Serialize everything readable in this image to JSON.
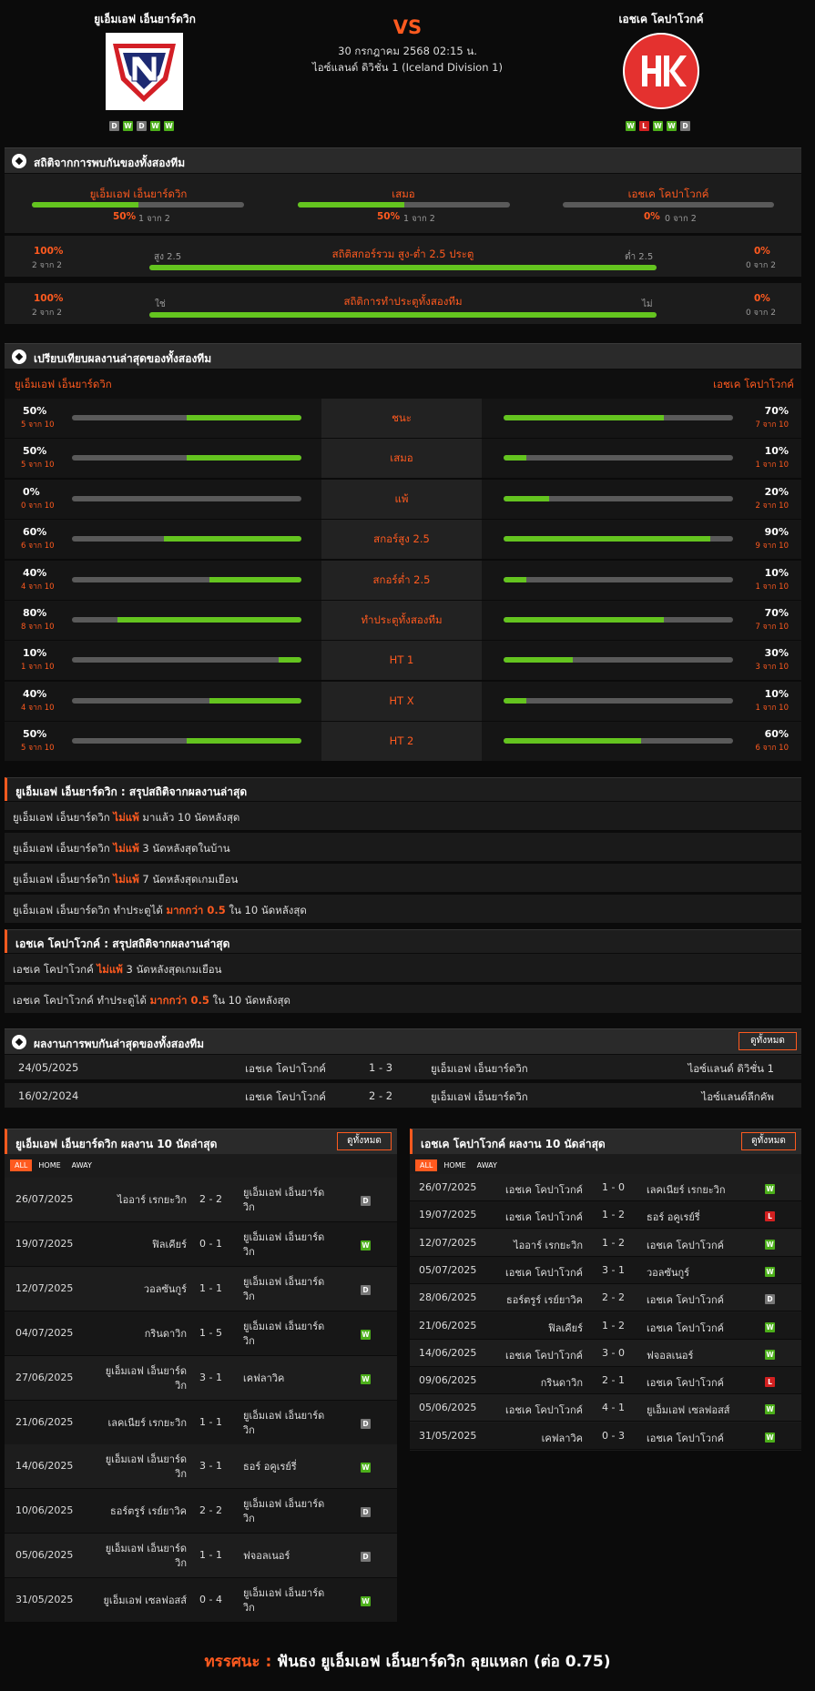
{
  "header": {
    "home_name": "ยูเอ็มเอฟ เอ็นยาร์ดวิก",
    "away_name": "เอชเค โคปาโวกค์",
    "vs": "VS",
    "date": "30 กรกฎาคม 2568 02:15 น.",
    "league": "ไอซ์แลนด์ ดิวิชั่น 1 (Iceland Division 1)",
    "home_form": [
      "D",
      "W",
      "D",
      "W",
      "W"
    ],
    "away_form": [
      "W",
      "L",
      "W",
      "W",
      "D"
    ]
  },
  "h2h_stats": {
    "title": "สถิติจากการพบกันของทั้งสองทีม",
    "cols": [
      {
        "name": "ยูเอ็มเอฟ เอ็นยาร์ดวิก",
        "pct": "50%",
        "sub": "1 จาก 2",
        "fill": 0.5
      },
      {
        "name": "เสมอ",
        "pct": "50%",
        "sub": "1 จาก 2",
        "fill": 0.5
      },
      {
        "name": "เอชเค โคปาโวกค์",
        "pct": "0%",
        "sub": "0 จาก 2",
        "fill": 0
      }
    ],
    "ou": {
      "left_pct": "100%",
      "left_sub": "2 จาก 2",
      "label_l": "สูง 2.5",
      "title": "สถิติสกอร์รวม สูง-ต่ำ 2.5 ประตู",
      "label_r": "ต่ำ 2.5",
      "right_pct": "0%",
      "right_sub": "0 จาก 2",
      "fill": 1
    },
    "btts": {
      "left_pct": "100%",
      "left_sub": "2 จาก 2",
      "label_l": "ใช่",
      "title": "สถิติการทำประตูทั้งสองทีม",
      "label_r": "ไม่",
      "right_pct": "0%",
      "right_sub": "0 จาก 2",
      "fill": 1
    }
  },
  "compare": {
    "title": "เปรียบเทียบผลงานล่าสุดของทั้งสองทีม",
    "home": "ยูเอ็มเอฟ เอ็นยาร์ดวิก",
    "away": "เอชเค โคปาโวกค์",
    "rows": [
      {
        "label": "ชนะ",
        "lp": "50%",
        "ls": "5 จาก 10",
        "lf": 0.5,
        "rp": "70%",
        "rs": "7 จาก 10",
        "rf": 0.7
      },
      {
        "label": "เสมอ",
        "lp": "50%",
        "ls": "5 จาก 10",
        "lf": 0.5,
        "rp": "10%",
        "rs": "1 จาก 10",
        "rf": 0.1
      },
      {
        "label": "แพ้",
        "lp": "0%",
        "ls": "0 จาก 10",
        "lf": 0,
        "rp": "20%",
        "rs": "2 จาก 10",
        "rf": 0.2
      },
      {
        "label": "สกอร์สูง 2.5",
        "lp": "60%",
        "ls": "6 จาก 10",
        "lf": 0.6,
        "rp": "90%",
        "rs": "9 จาก 10",
        "rf": 0.9
      },
      {
        "label": "สกอร์ต่ำ 2.5",
        "lp": "40%",
        "ls": "4 จาก 10",
        "lf": 0.4,
        "rp": "10%",
        "rs": "1 จาก 10",
        "rf": 0.1
      },
      {
        "label": "ทำประตูทั้งสองทีม",
        "lp": "80%",
        "ls": "8 จาก 10",
        "lf": 0.8,
        "rp": "70%",
        "rs": "7 จาก 10",
        "rf": 0.7
      },
      {
        "label": "HT 1",
        "lp": "10%",
        "ls": "1 จาก 10",
        "lf": 0.1,
        "rp": "30%",
        "rs": "3 จาก 10",
        "rf": 0.3
      },
      {
        "label": "HT X",
        "lp": "40%",
        "ls": "4 จาก 10",
        "lf": 0.4,
        "rp": "10%",
        "rs": "1 จาก 10",
        "rf": 0.1
      },
      {
        "label": "HT 2",
        "lp": "50%",
        "ls": "5 จาก 10",
        "lf": 0.5,
        "rp": "60%",
        "rs": "6 จาก 10",
        "rf": 0.6
      }
    ]
  },
  "home_summary": {
    "title": "ยูเอ็มเอฟ เอ็นยาร์ดวิก : สรุปสถิติจากผลงานล่าสุด",
    "lines": [
      {
        "a": "ยูเอ็มเอฟ เอ็นยาร์ดวิก ",
        "h": "ไม่แพ้",
        "b": " มาแล้ว 10 นัดหลังสุด"
      },
      {
        "a": "ยูเอ็มเอฟ เอ็นยาร์ดวิก ",
        "h": "ไม่แพ้",
        "b": " 3  นัดหลังสุดในบ้าน"
      },
      {
        "a": "ยูเอ็มเอฟ เอ็นยาร์ดวิก ",
        "h": "ไม่แพ้",
        "b": " 7  นัดหลังสุดเกมเยือน"
      },
      {
        "a": "ยูเอ็มเอฟ เอ็นยาร์ดวิก  ทำประตูได้ ",
        "h": "มากกว่า  0.5",
        "b": "  ใน 10 นัดหลังสุด"
      }
    ]
  },
  "away_summary": {
    "title": "เอชเค โคปาโวกค์ : สรุปสถิติจากผลงานล่าสุด",
    "lines": [
      {
        "a": "เอชเค โคปาโวกค์ ",
        "h": "ไม่แพ้",
        "b": " 3  นัดหลังสุดเกมเยือน"
      },
      {
        "a": "เอชเค โคปาโวกค์  ทำประตูได้ ",
        "h": "มากกว่า  0.5",
        "b": "  ใน 10 นัดหลังสุด"
      }
    ]
  },
  "recent_h2h": {
    "title": "ผลงานการพบกันล่าสุดของทั้งสองทีม",
    "view_all": "ดูทั้งหมด",
    "rows": [
      {
        "date": "24/05/2025",
        "home": "เอชเค โคปาโวกค์",
        "score": "1 - 3",
        "away": "ยูเอ็มเอฟ เอ็นยาร์ดวิก",
        "league": "ไอซ์แลนด์ ดิวิชั่น 1"
      },
      {
        "date": "16/02/2024",
        "home": "เอชเค โคปาโวกค์",
        "score": "2 - 2",
        "away": "ยูเอ็มเอฟ เอ็นยาร์ดวิก",
        "league": "ไอซ์แลนด์ลีกคัพ"
      }
    ]
  },
  "home_last10": {
    "title": "ยูเอ็มเอฟ เอ็นยาร์ดวิก ผลงาน 10 นัดล่าสุด",
    "view_all": "ดูทั้งหมด",
    "tabs": [
      "ALL",
      "HOME",
      "AWAY"
    ],
    "rows": [
      {
        "date": "26/07/2025",
        "home": "ไออาร์ เรกยะวิก",
        "score": "2 - 2",
        "away": "ยูเอ็มเอฟ เอ็นยาร์ด\nวิก",
        "res": "D"
      },
      {
        "date": "19/07/2025",
        "home": "ฟิลเคียร์",
        "score": "0 - 1",
        "away": "ยูเอ็มเอฟ เอ็นยาร์ด\nวิก",
        "res": "W"
      },
      {
        "date": "12/07/2025",
        "home": "วอลซันกูร์",
        "score": "1 - 1",
        "away": "ยูเอ็มเอฟ เอ็นยาร์ด\nวิก",
        "res": "D"
      },
      {
        "date": "04/07/2025",
        "home": "กรินดาวิก",
        "score": "1 - 5",
        "away": "ยูเอ็มเอฟ เอ็นยาร์ด\nวิก",
        "res": "W"
      },
      {
        "date": "27/06/2025",
        "home": "ยูเอ็มเอฟ เอ็นยาร์ด\nวิก",
        "score": "3 - 1",
        "away": "เคฟลาวิค",
        "res": "W"
      },
      {
        "date": "21/06/2025",
        "home": "เลคเนียร์ เรกยะวิก",
        "score": "1 - 1",
        "away": "ยูเอ็มเอฟ เอ็นยาร์ด\nวิก",
        "res": "D"
      },
      {
        "date": "14/06/2025",
        "home": "ยูเอ็มเอฟ เอ็นยาร์ด\nวิก",
        "score": "3 - 1",
        "away": "ธอร์ อคูเรย์รี่",
        "res": "W"
      },
      {
        "date": "10/06/2025",
        "home": "ธอร์ตรูร์ เรย์ยาวิค",
        "score": "2 - 2",
        "away": "ยูเอ็มเอฟ เอ็นยาร์ด\nวิก",
        "res": "D"
      },
      {
        "date": "05/06/2025",
        "home": "ยูเอ็มเอฟ เอ็นยาร์ด\nวิก",
        "score": "1 - 1",
        "away": "ฟจอลเนอร์",
        "res": "D"
      },
      {
        "date": "31/05/2025",
        "home": "ยูเอ็มเอฟ เซลฟอสส์",
        "score": "0 - 4",
        "away": "ยูเอ็มเอฟ เอ็นยาร์ด\nวิก",
        "res": "W"
      }
    ]
  },
  "away_last10": {
    "title": "เอชเค โคปาโวกค์ ผลงาน 10 นัดล่าสุด",
    "view_all": "ดูทั้งหมด",
    "tabs": [
      "ALL",
      "HOME",
      "AWAY"
    ],
    "rows": [
      {
        "date": "26/07/2025",
        "home": "เอชเค โคปาโวกค์",
        "score": "1 - 0",
        "away": "เลคเนียร์ เรกยะวิก",
        "res": "W"
      },
      {
        "date": "19/07/2025",
        "home": "เอชเค โคปาโวกค์",
        "score": "1 - 2",
        "away": "ธอร์ อคูเรย์รี่",
        "res": "L"
      },
      {
        "date": "12/07/2025",
        "home": "ไออาร์ เรกยะวิก",
        "score": "1 - 2",
        "away": "เอชเค โคปาโวกค์",
        "res": "W"
      },
      {
        "date": "05/07/2025",
        "home": "เอชเค โคปาโวกค์",
        "score": "3 - 1",
        "away": "วอลซันกูร์",
        "res": "W"
      },
      {
        "date": "28/06/2025",
        "home": "ธอร์ตรูร์ เรย์ยาวิค",
        "score": "2 - 2",
        "away": "เอชเค โคปาโวกค์",
        "res": "D"
      },
      {
        "date": "21/06/2025",
        "home": "ฟิลเคียร์",
        "score": "1 - 2",
        "away": "เอชเค โคปาโวกค์",
        "res": "W"
      },
      {
        "date": "14/06/2025",
        "home": "เอชเค โคปาโวกค์",
        "score": "3 - 0",
        "away": "ฟจอลเนอร์",
        "res": "W"
      },
      {
        "date": "09/06/2025",
        "home": "กรินดาวิก",
        "score": "2 - 1",
        "away": "เอชเค โคปาโวกค์",
        "res": "L"
      },
      {
        "date": "05/06/2025",
        "home": "เอชเค โคปาโวกค์",
        "score": "4 - 1",
        "away": "ยูเอ็มเอฟ เซลฟอสส์",
        "res": "W"
      },
      {
        "date": "31/05/2025",
        "home": "เคฟลาวิค",
        "score": "0 - 3",
        "away": "เอชเค โคปาโวกค์",
        "res": "W"
      }
    ]
  },
  "verdict": {
    "label": "ทรรศนะ :",
    "text": "  ฟันธง ยูเอ็มเอฟ เอ็นยาร์ดวิก ลุยแหลก (ต่อ 0.75)"
  },
  "colors": {
    "accent": "#ff5a1f",
    "bar_fill": "#64c41f",
    "win": "#4caf1a",
    "draw": "#777777",
    "loss": "#d32020"
  }
}
